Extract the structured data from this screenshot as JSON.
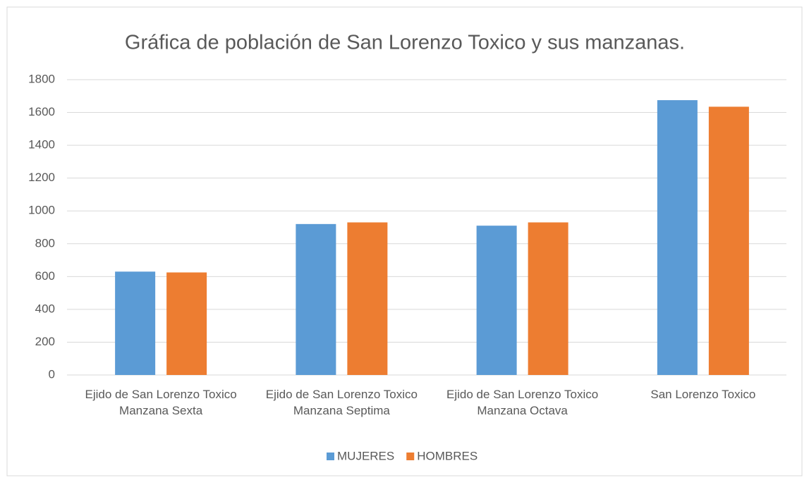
{
  "chart_data": {
    "type": "bar",
    "title": "Gráfica de población de San Lorenzo Toxico y sus manzanas.",
    "categories": [
      "Ejido de San Lorenzo Toxico Manzana Sexta",
      "Ejido de San Lorenzo Toxico Manzana Septima",
      "Ejido de San Lorenzo Toxico Manzana Octava",
      "San Lorenzo Toxico"
    ],
    "series": [
      {
        "name": "MUJERES",
        "color": "#5b9bd5",
        "values": [
          630,
          920,
          910,
          1675
        ]
      },
      {
        "name": "HOMBRES",
        "color": "#ed7d31",
        "values": [
          625,
          930,
          930,
          1635
        ]
      }
    ],
    "ylim": [
      0,
      1800
    ],
    "yticks": [
      0,
      200,
      400,
      600,
      800,
      1000,
      1200,
      1400,
      1600,
      1800
    ],
    "grid": true,
    "legend": "bottom"
  }
}
